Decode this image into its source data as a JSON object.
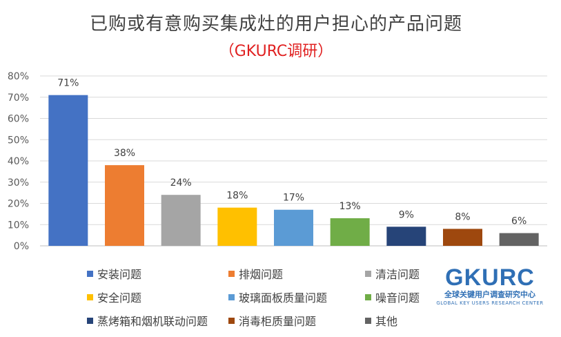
{
  "title": "已购或有意购买集成灶的用户担心的产品问题",
  "subtitle": "（GKURC调研）",
  "logo": {
    "text": "GKURC",
    "cn": "全球关键用户调查研究中心",
    "en": "GLOBAL KEY USERS RESEARCH CENTER"
  },
  "chart_data": {
    "type": "bar",
    "title": "已购或有意购买集成灶的用户担心的产品问题",
    "subtitle": "（GKURC调研）",
    "ylim": [
      0,
      80
    ],
    "y_ticks": [
      "0%",
      "10%",
      "20%",
      "30%",
      "40%",
      "50%",
      "60%",
      "70%",
      "80%"
    ],
    "grid": true,
    "legend_position": "bottom",
    "categories": [
      "安装问题",
      "排烟问题",
      "清洁问题",
      "安全问题",
      "玻璃面板质量问题",
      "噪音问题",
      "蒸烤箱和烟机联动问题",
      "消毒柜质量问题",
      "其他"
    ],
    "values": [
      71,
      38,
      24,
      18,
      17,
      13,
      9,
      8,
      6
    ],
    "labels": [
      "71%",
      "38%",
      "24%",
      "18%",
      "17%",
      "13%",
      "9%",
      "8%",
      "6%"
    ],
    "colors": [
      "#4472c4",
      "#ed7d31",
      "#a5a5a5",
      "#ffc000",
      "#5b9bd5",
      "#70ad47",
      "#264478",
      "#9e480e",
      "#636363"
    ]
  }
}
